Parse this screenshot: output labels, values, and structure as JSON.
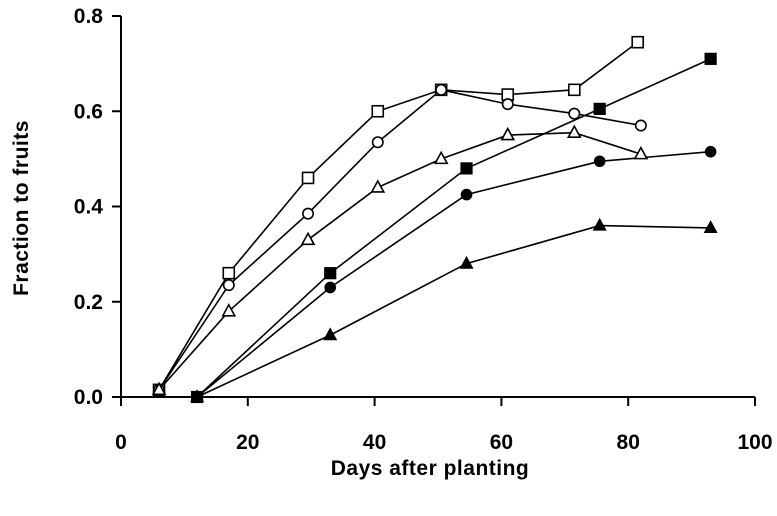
{
  "chart_data": {
    "type": "line",
    "xlabel": "Days after planting",
    "ylabel": "Fraction to fruits",
    "xlim": [
      0,
      100
    ],
    "ylim": [
      0.0,
      0.8
    ],
    "x_ticks": [
      "0",
      "20",
      "40",
      "60",
      "80",
      "100"
    ],
    "y_ticks": [
      "0.0",
      "0.2",
      "0.4",
      "0.6",
      "0.8"
    ],
    "x_tick_values": [
      0,
      20,
      40,
      60,
      80,
      100
    ],
    "y_tick_values": [
      0.0,
      0.2,
      0.4,
      0.6,
      0.8
    ],
    "grid": false,
    "legend": "none",
    "series": [
      {
        "marker": "open-square",
        "x": [
          6,
          17,
          29.5,
          40.5,
          50.5,
          61,
          71.5,
          81.5
        ],
        "y": [
          0.015,
          0.26,
          0.46,
          0.6,
          0.645,
          0.635,
          0.645,
          0.745
        ]
      },
      {
        "marker": "open-circle",
        "x": [
          6,
          17,
          29.5,
          40.5,
          50.5,
          61,
          71.5,
          82
        ],
        "y": [
          0.015,
          0.235,
          0.385,
          0.535,
          0.645,
          0.615,
          0.595,
          0.57
        ]
      },
      {
        "marker": "open-triangle",
        "x": [
          6,
          17,
          29.5,
          40.5,
          50.5,
          61,
          71.5,
          82
        ],
        "y": [
          0.015,
          0.18,
          0.33,
          0.44,
          0.5,
          0.55,
          0.555,
          0.51
        ]
      },
      {
        "marker": "filled-square",
        "x": [
          12,
          33,
          54.5,
          75.5,
          93
        ],
        "y": [
          0.0,
          0.26,
          0.48,
          0.605,
          0.71
        ]
      },
      {
        "marker": "filled-circle",
        "x": [
          12,
          33,
          54.5,
          75.5,
          93
        ],
        "y": [
          0.0,
          0.23,
          0.425,
          0.495,
          0.515
        ]
      },
      {
        "marker": "filled-triangle",
        "x": [
          12,
          33,
          54.5,
          75.5,
          93
        ],
        "y": [
          0.0,
          0.13,
          0.28,
          0.36,
          0.355
        ]
      }
    ]
  }
}
